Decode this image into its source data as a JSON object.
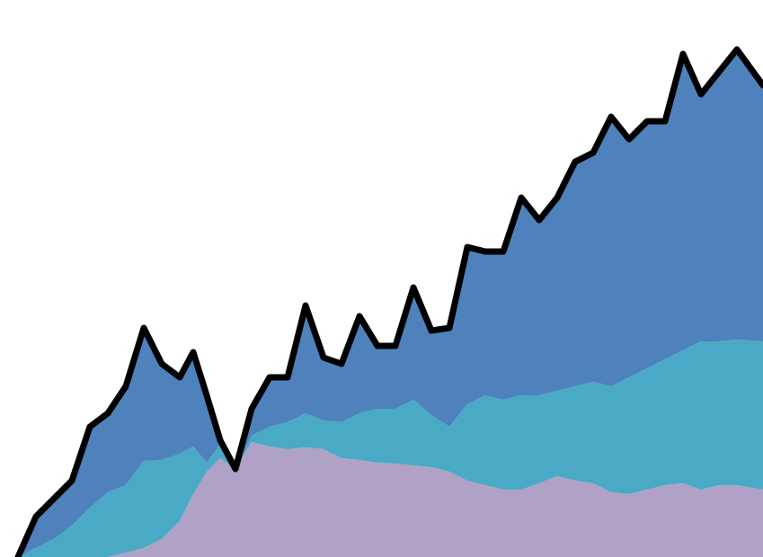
{
  "chart_data": {
    "type": "stacked_area",
    "x": [
      20,
      40,
      60,
      80,
      100,
      120,
      140,
      160,
      180,
      200,
      215,
      230,
      245,
      262,
      280,
      300,
      320,
      340,
      360,
      380,
      400,
      420,
      440,
      460,
      480,
      500,
      520,
      540,
      560,
      580,
      600,
      620,
      640,
      660,
      680,
      700,
      720,
      740,
      760,
      780,
      800,
      820,
      849
    ],
    "xlim": [
      20,
      849
    ],
    "ylim": [
      0,
      600
    ],
    "line_color": "#000000",
    "series": [
      {
        "color": "#b0a1c7",
        "values": [
          0,
          0,
          0,
          0,
          0,
          0,
          5,
          10,
          20,
          40,
          70,
          95,
          110,
          98,
          128,
          123,
          120,
          122,
          120,
          110,
          108,
          105,
          104,
          102,
          100,
          95,
          85,
          80,
          75,
          75,
          82,
          90,
          85,
          82,
          72,
          70,
          75,
          80,
          82,
          75,
          80,
          80,
          75
        ]
      },
      {
        "color": "#4aaac5",
        "values": [
          0,
          10,
          20,
          35,
          55,
          72,
          75,
          97,
          88,
          75,
          53,
          10,
          15,
          0,
          7,
          22,
          30,
          38,
          32,
          40,
          52,
          60,
          61,
          73,
          58,
          50,
          85,
          100,
          100,
          105,
          98,
          95,
          105,
          113,
          118,
          130,
          135,
          140,
          148,
          165,
          160,
          162,
          165
        ]
      },
      {
        "color": "#4f82bc",
        "values": [
          0,
          35,
          45,
          50,
          90,
          88,
          110,
          148,
          107,
          85,
          105,
          75,
          5,
          0,
          30,
          55,
          50,
          120,
          70,
          65,
          108,
          70,
          70,
          125,
          94,
          110,
          175,
          160,
          165,
          220,
          195,
          215,
          250,
          255,
          300,
          265,
          275,
          265,
          330,
          275,
          300,
          323,
          285
        ]
      }
    ]
  }
}
